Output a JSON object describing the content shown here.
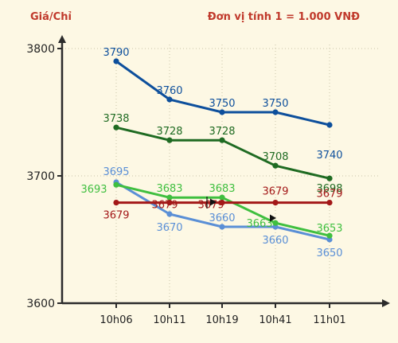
{
  "chart_data": {
    "type": "line",
    "ylabel": "Giá/Chỉ",
    "unit_note": "Đơn vị tính 1 = 1.000 VNĐ",
    "categories": [
      "10h06",
      "10h11",
      "10h19",
      "10h41",
      "11h01"
    ],
    "yticks": [
      3600,
      3700,
      3800
    ],
    "ylim": [
      3600,
      3800
    ],
    "grid": true,
    "series": [
      {
        "color": "#0d4f9c",
        "values": [
          3790,
          3760,
          3750,
          3750,
          3740
        ],
        "labels": [
          "3790",
          "3760",
          "3750",
          "3750",
          "3740"
        ]
      },
      {
        "color": "#1f6b22",
        "values": [
          3738,
          3728,
          3728,
          3708,
          3698
        ],
        "labels": [
          "3738",
          "3728",
          "3728",
          "3708",
          "3698"
        ]
      },
      {
        "color": "#5a8fd6",
        "values": [
          3695,
          3670,
          3660,
          3660,
          3650
        ],
        "labels": [
          "3695",
          "3670",
          "3660",
          "3660",
          "3650"
        ]
      },
      {
        "color": "#3fbf3f",
        "values": [
          3693,
          3683,
          3683,
          3663,
          3653
        ],
        "labels": [
          "3693",
          "3683",
          "3683",
          "3663",
          "3653"
        ]
      },
      {
        "color": "#a31818",
        "values": [
          3679,
          3679,
          3679,
          3679,
          3679
        ],
        "labels": [
          "3679",
          "3679",
          "3679",
          "3679",
          "3679"
        ]
      }
    ]
  }
}
